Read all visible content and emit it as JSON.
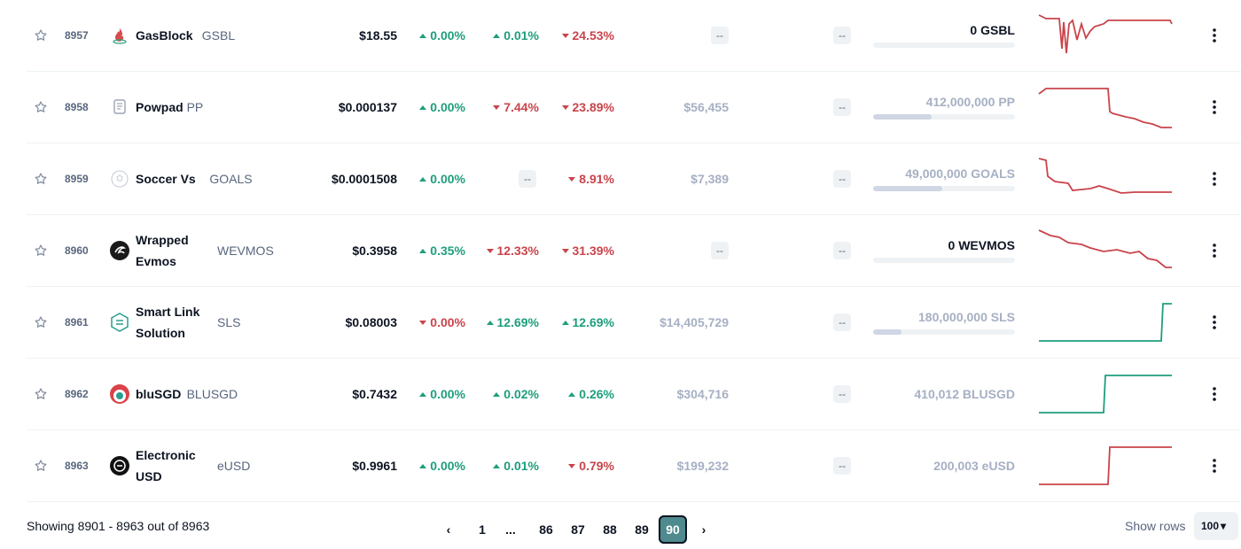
{
  "colors": {
    "up": "#1e9e7d",
    "down": "#c9444b",
    "accent": "#4e8a8e"
  },
  "rows": [
    {
      "rank": "8957",
      "name": "GasBlock",
      "symbol": "GSBL",
      "price": "$18.55",
      "h1": "0.00%",
      "h1_dir": "up",
      "h24": "0.01%",
      "h24_dir": "up",
      "d7": "24.53%",
      "d7_dir": "down",
      "mcap": "--",
      "volume": "--",
      "supply": "0 GSBL",
      "supply_fill": 0,
      "spark_dir": "down",
      "icon": "flame-icon"
    },
    {
      "rank": "8958",
      "name": "Powpad",
      "symbol": "PP",
      "price": "$0.000137",
      "h1": "0.00%",
      "h1_dir": "up",
      "h24": "7.44%",
      "h24_dir": "down",
      "d7": "23.89%",
      "d7_dir": "down",
      "mcap": "$56,455",
      "volume": "--",
      "supply": "412,000,000 PP",
      "supply_fill": 0.41,
      "spark_dir": "down",
      "icon": "powpad-icon"
    },
    {
      "rank": "8959",
      "name": "Soccer Vs",
      "symbol": "GOALS",
      "price": "$0.0001508",
      "h1": "0.00%",
      "h1_dir": "up",
      "h24": "--",
      "h24_dir": "none",
      "d7": "8.91%",
      "d7_dir": "down",
      "mcap": "$7,389",
      "volume": "--",
      "supply": "49,000,000 GOALS",
      "supply_fill": 0.49,
      "spark_dir": "down",
      "icon": "soccer-ball-icon"
    },
    {
      "rank": "8960",
      "name": "Wrapped Evmos",
      "symbol": "WEVMOS",
      "price": "$0.3958",
      "h1": "0.35%",
      "h1_dir": "up",
      "h24": "12.33%",
      "h24_dir": "down",
      "d7": "31.39%",
      "d7_dir": "down",
      "mcap": "--",
      "volume": "--",
      "supply": "0 WEVMOS",
      "supply_fill": 0,
      "spark_dir": "down",
      "icon": "evmos-icon"
    },
    {
      "rank": "8961",
      "name": "Smart Link Solution",
      "symbol": "SLS",
      "price": "$0.08003",
      "h1": "0.00%",
      "h1_dir": "down",
      "h24": "12.69%",
      "h24_dir": "up",
      "d7": "12.69%",
      "d7_dir": "up",
      "mcap": "$14,405,729",
      "volume": "--",
      "supply": "180,000,000 SLS",
      "supply_fill": 0.2,
      "spark_dir": "up",
      "icon": "smart-link-icon"
    },
    {
      "rank": "8962",
      "name": "bluSGD",
      "symbol": "BLUSGD",
      "price": "$0.7432",
      "h1": "0.00%",
      "h1_dir": "up",
      "h24": "0.02%",
      "h24_dir": "up",
      "d7": "0.26%",
      "d7_dir": "up",
      "mcap": "$304,716",
      "volume": "--",
      "supply": "410,012 BLUSGD",
      "supply_fill": null,
      "spark_dir": "up",
      "icon": "blusgd-icon"
    },
    {
      "rank": "8963",
      "name": "Electronic USD",
      "symbol": "eUSD",
      "price": "$0.9961",
      "h1": "0.00%",
      "h1_dir": "up",
      "h24": "0.01%",
      "h24_dir": "up",
      "d7": "0.79%",
      "d7_dir": "down",
      "mcap": "$199,232",
      "volume": "--",
      "supply": "200,003 eUSD",
      "supply_fill": null,
      "spark_dir": "step-up-red",
      "icon": "eusd-icon"
    }
  ],
  "footer": {
    "showing": "Showing 8901 - 8963 out of 8963",
    "pages": [
      "1",
      "...",
      "86",
      "87",
      "88",
      "89",
      "90"
    ],
    "active_page": "90",
    "show_rows_label": "Show rows",
    "rows_value": "100"
  }
}
